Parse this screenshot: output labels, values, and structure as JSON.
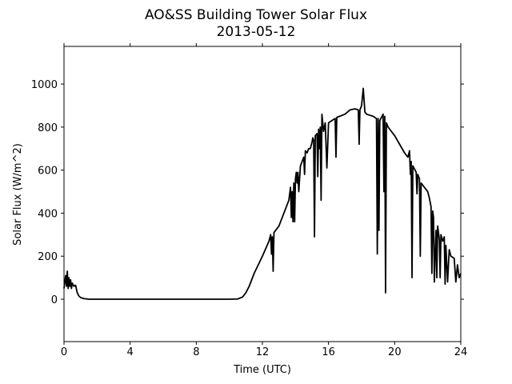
{
  "chart_data": {
    "type": "line",
    "title": "AO&SS Building Tower Solar Flux",
    "subtitle": "2013-05-12",
    "xlabel": "Time (UTC)",
    "ylabel": "Solar Flux (W/m^2)",
    "xlim": [
      0,
      24
    ],
    "xticks": [
      0,
      4,
      8,
      12,
      16,
      20,
      24
    ],
    "ylim": [
      -197,
      1175
    ],
    "yticks": [
      0,
      200,
      400,
      600,
      800,
      1000
    ],
    "grid": false,
    "series": [
      {
        "name": "Solar Flux",
        "color": "#000000",
        "x": [
          0,
          0.1,
          0.15,
          0.2,
          0.25,
          0.3,
          0.35,
          0.4,
          0.45,
          0.5,
          0.6,
          0.7,
          0.8,
          0.9,
          1.0,
          1.2,
          1.5,
          2,
          4,
          6,
          8,
          10,
          10.5,
          10.8,
          11,
          11.2,
          11.5,
          12,
          12.4,
          12.5,
          12.55,
          12.6,
          12.65,
          12.7,
          13,
          13.3,
          13.4,
          13.6,
          13.7,
          13.75,
          13.8,
          13.85,
          13.9,
          13.95,
          14,
          14.05,
          14.1,
          14.15,
          14.2,
          14.3,
          14.4,
          14.5,
          14.55,
          14.6,
          14.7,
          14.8,
          14.9,
          15.0,
          15.05,
          15.1,
          15.15,
          15.2,
          15.3,
          15.35,
          15.4,
          15.45,
          15.5,
          15.55,
          15.6,
          15.7,
          15.8,
          15.9,
          16,
          16.2,
          16.4,
          16.45,
          16.5,
          17,
          17.3,
          17.6,
          17.8,
          17.85,
          17.9,
          18,
          18.1,
          18.2,
          18.3,
          18.5,
          18.7,
          18.9,
          18.95,
          19,
          19.05,
          19.1,
          19.3,
          19.35,
          19.4,
          19.45,
          19.5,
          19.6,
          19.8,
          20,
          20.3,
          20.6,
          20.8,
          20.9,
          20.95,
          21,
          21.05,
          21.1,
          21.3,
          21.35,
          21.4,
          21.5,
          21.55,
          21.6,
          21.8,
          22,
          22.1,
          22.2,
          22.25,
          22.3,
          22.35,
          22.4,
          22.5,
          22.55,
          22.6,
          22.7,
          22.75,
          22.8,
          22.9,
          23,
          23.05,
          23.1,
          23.2,
          23.3,
          23.4,
          23.6,
          23.7,
          23.8,
          23.9,
          24
        ],
        "values": [
          50,
          110,
          60,
          130,
          50,
          100,
          60,
          90,
          50,
          75,
          60,
          65,
          30,
          15,
          8,
          3,
          0,
          0,
          0,
          0,
          0,
          0,
          1,
          10,
          30,
          60,
          120,
          200,
          270,
          300,
          210,
          290,
          130,
          310,
          340,
          400,
          420,
          460,
          520,
          380,
          500,
          360,
          540,
          360,
          560,
          590,
          540,
          590,
          500,
          620,
          640,
          660,
          580,
          690,
          680,
          700,
          700,
          730,
          750,
          740,
          290,
          760,
          770,
          570,
          790,
          700,
          800,
          460,
          860,
          780,
          820,
          610,
          820,
          830,
          840,
          660,
          845,
          860,
          880,
          885,
          880,
          720,
          880,
          900,
          980,
          870,
          860,
          855,
          850,
          840,
          210,
          840,
          320,
          830,
          860,
          500,
          850,
          30,
          820,
          800,
          780,
          760,
          720,
          680,
          660,
          690,
          580,
          640,
          100,
          620,
          590,
          490,
          580,
          560,
          200,
          540,
          520,
          500,
          470,
          430,
          120,
          410,
          380,
          80,
          320,
          100,
          340,
          280,
          100,
          300,
          270,
          290,
          70,
          250,
          80,
          230,
          200,
          190,
          80,
          160,
          100,
          120
        ]
      }
    ]
  }
}
